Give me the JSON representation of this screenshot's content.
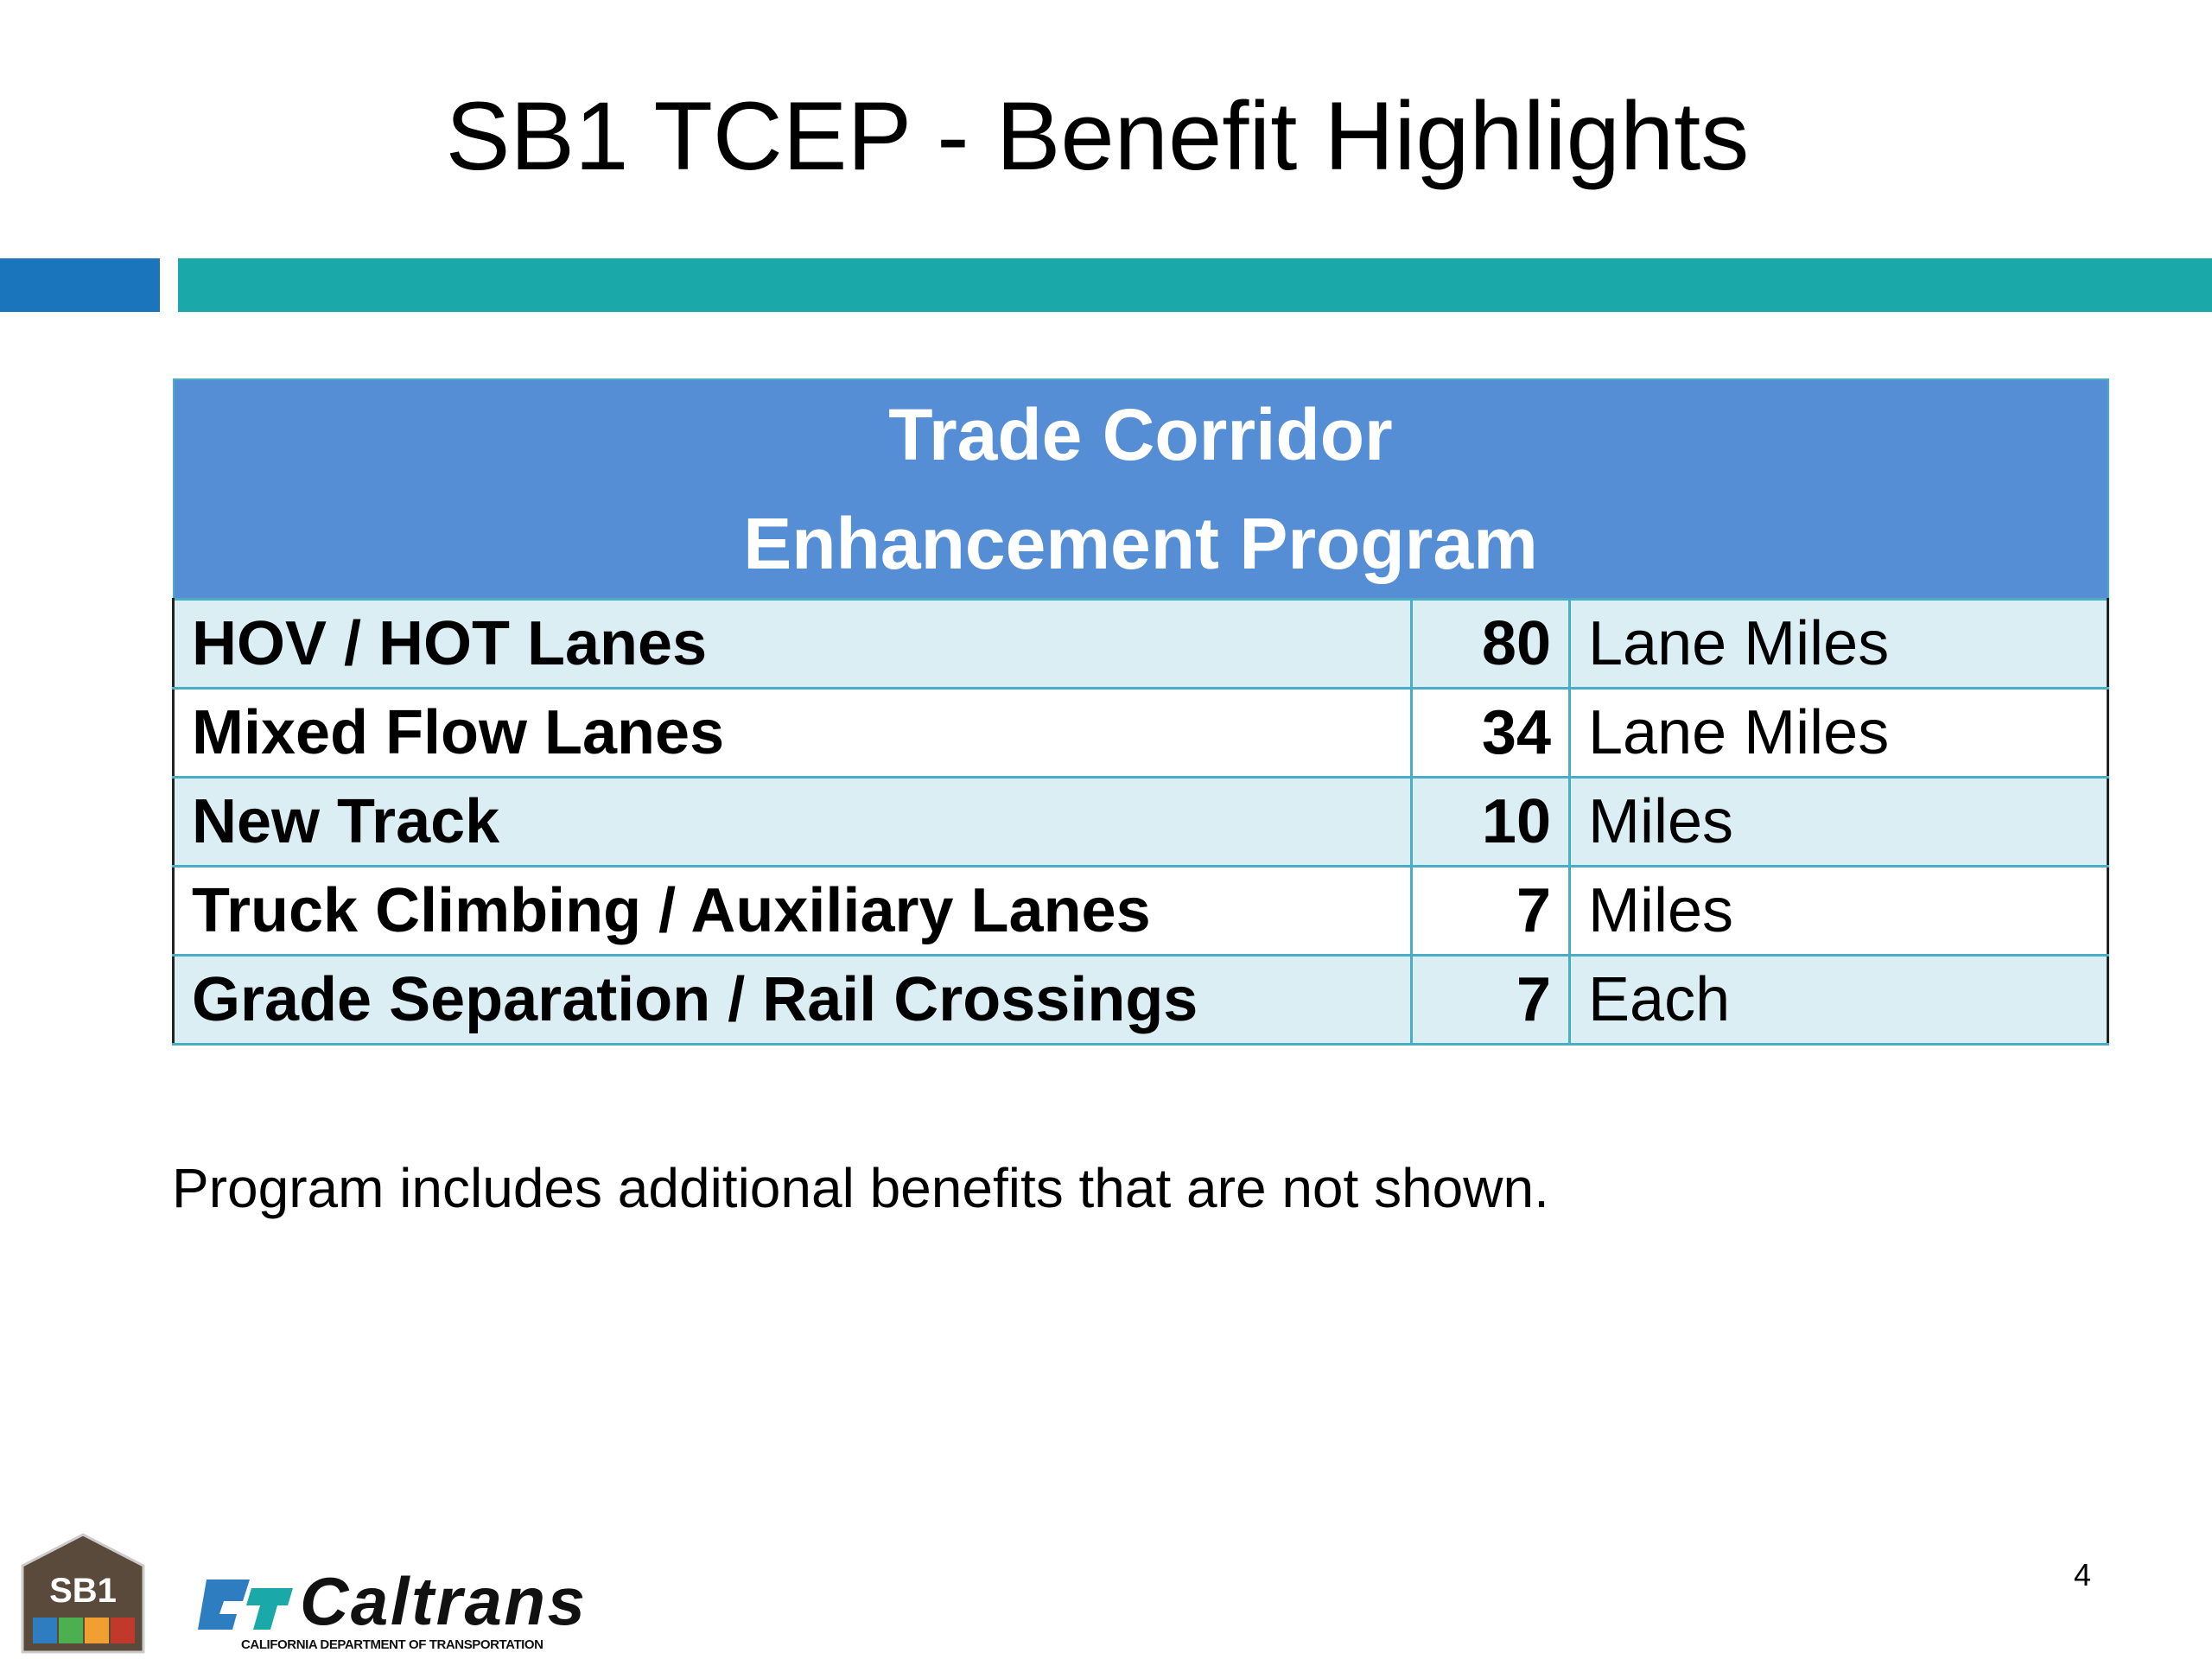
{
  "title": "SB1 TCEP - Benefit Highlights",
  "table": {
    "header": [
      "Trade Corridor",
      "Enhancement Program"
    ],
    "rows": [
      [
        "HOV / HOT Lanes",
        80,
        "Lane Miles"
      ],
      [
        "Mixed Flow Lanes",
        34,
        "Lane Miles"
      ],
      [
        "New Track",
        10,
        "Miles"
      ],
      [
        "Truck Climbing / Auxiliary Lanes",
        7,
        "Miles"
      ],
      [
        "Grade Separation / Rail Crossings",
        7,
        "Each"
      ]
    ]
  },
  "note": "Program includes additional benefits that are not shown.",
  "page_number": 4,
  "logos": {
    "sb1": "SB1",
    "caltrans": "Caltrans",
    "caltrans_subtitle": "CALIFORNIA DEPARTMENT OF TRANSPORTATION"
  }
}
